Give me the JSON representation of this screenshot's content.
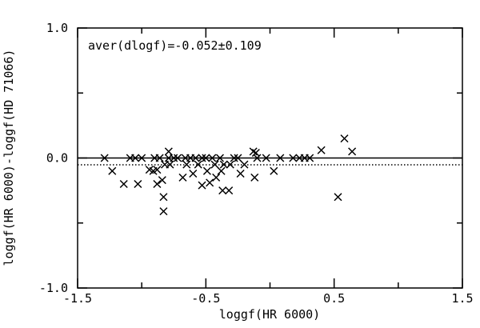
{
  "chart_data": {
    "type": "scatter",
    "x_label": "loggf(HR 6000)",
    "y_label": "loggf(HR 6000)-loggf(HD 71066)",
    "annotation": "aver(dlogf)=-0.052±0.109",
    "marker": "x",
    "color": "#000000",
    "xlim": [
      -1.5,
      1.5
    ],
    "ylim": [
      -1.0,
      1.0
    ],
    "xticks": [
      -1.5,
      -0.5,
      0.5,
      1.5
    ],
    "xminor_ticks": [
      -1,
      0,
      1
    ],
    "yticks": [
      {
        "value": 1.0,
        "label": "1.0"
      },
      {
        "value": 0,
        "label": "0.0"
      },
      {
        "value": -1.0,
        "label": "-1.0"
      }
    ],
    "yminor_ticks": [
      0.5,
      -0.5
    ],
    "reference_lines": [
      {
        "y": 0,
        "style": "solid"
      },
      {
        "y": -0.052,
        "style": "dotted"
      }
    ],
    "x": [
      -1.29,
      -1.23,
      -1.14,
      -1.09,
      -1.05,
      -1.03,
      -1.0,
      -0.94,
      -0.91,
      -0.9,
      -0.88,
      -0.88,
      -0.86,
      -0.84,
      -0.83,
      -0.83,
      -0.82,
      -0.79,
      -0.79,
      -0.78,
      -0.75,
      -0.72,
      -0.68,
      -0.66,
      -0.65,
      -0.62,
      -0.6,
      -0.58,
      -0.56,
      -0.53,
      -0.53,
      -0.5,
      -0.49,
      -0.47,
      -0.45,
      -0.43,
      -0.42,
      -0.39,
      -0.38,
      -0.37,
      -0.36,
      -0.32,
      -0.31,
      -0.28,
      -0.25,
      -0.23,
      -0.2,
      -0.13,
      -0.12,
      -0.11,
      -0.1,
      -0.03,
      0.03,
      0.08,
      0.18,
      0.23,
      0.27,
      0.31,
      0.4,
      0.53,
      0.58,
      0.64
    ],
    "values": [
      0,
      -0.1,
      -0.2,
      0,
      0,
      -0.2,
      0,
      -0.09,
      -0.1,
      0,
      -0.2,
      -0.09,
      0,
      -0.17,
      -0.3,
      -0.41,
      -0.05,
      0.05,
      0,
      -0.05,
      0,
      0,
      -0.15,
      0,
      -0.05,
      0,
      -0.12,
      0,
      -0.05,
      0,
      -0.21,
      0,
      -0.1,
      -0.19,
      0,
      -0.05,
      -0.15,
      0,
      -0.1,
      -0.25,
      -0.05,
      -0.25,
      -0.05,
      0,
      0,
      -0.12,
      -0.05,
      0.05,
      -0.15,
      0.04,
      0,
      0,
      -0.1,
      0,
      0,
      0,
      0,
      0,
      0.06,
      -0.3,
      0.15,
      0.05
    ]
  }
}
